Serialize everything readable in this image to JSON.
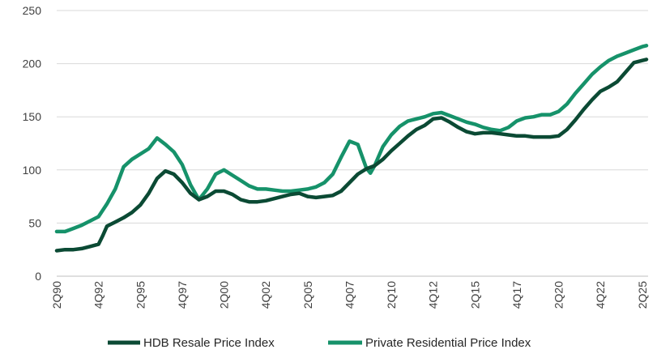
{
  "chart_data": {
    "type": "line",
    "title": "",
    "xlabel": "",
    "ylabel": "",
    "ylim": [
      0,
      250
    ],
    "yticks": [
      0,
      50,
      100,
      150,
      200,
      250
    ],
    "grid": "horizontal",
    "legend_position": "bottom",
    "x_tick_labels": [
      "2Q90",
      "4Q92",
      "2Q95",
      "4Q97",
      "2Q00",
      "4Q02",
      "2Q05",
      "4Q07",
      "2Q10",
      "4Q12",
      "2Q15",
      "4Q17",
      "2Q20",
      "4Q22",
      "2Q25"
    ],
    "colors": {
      "hdb": "#0b4a34",
      "private": "#16926a",
      "grid": "#d9d9d9",
      "axis": "#bfbfbf"
    },
    "series": [
      {
        "name": "HDB Resale Price Index",
        "key": "hdb",
        "points": [
          [
            "2Q90",
            24
          ],
          [
            "4Q90",
            25
          ],
          [
            "2Q91",
            25
          ],
          [
            "4Q91",
            26
          ],
          [
            "2Q92",
            28
          ],
          [
            "4Q92",
            30
          ],
          [
            "1Q93",
            38
          ],
          [
            "2Q93",
            47
          ],
          [
            "4Q93",
            51
          ],
          [
            "2Q94",
            55
          ],
          [
            "4Q94",
            60
          ],
          [
            "2Q95",
            67
          ],
          [
            "4Q95",
            78
          ],
          [
            "2Q96",
            92
          ],
          [
            "4Q96",
            99
          ],
          [
            "2Q97",
            96
          ],
          [
            "4Q97",
            88
          ],
          [
            "2Q98",
            78
          ],
          [
            "4Q98",
            72
          ],
          [
            "2Q99",
            75
          ],
          [
            "4Q99",
            80
          ],
          [
            "2Q00",
            80
          ],
          [
            "4Q00",
            77
          ],
          [
            "2Q01",
            72
          ],
          [
            "4Q01",
            70
          ],
          [
            "2Q02",
            70
          ],
          [
            "4Q02",
            71
          ],
          [
            "2Q03",
            73
          ],
          [
            "4Q03",
            75
          ],
          [
            "2Q04",
            77
          ],
          [
            "4Q04",
            78
          ],
          [
            "2Q05",
            75
          ],
          [
            "4Q05",
            74
          ],
          [
            "2Q06",
            75
          ],
          [
            "4Q06",
            76
          ],
          [
            "2Q07",
            80
          ],
          [
            "4Q07",
            88
          ],
          [
            "2Q08",
            96
          ],
          [
            "4Q08",
            101
          ],
          [
            "2Q09",
            104
          ],
          [
            "4Q09",
            110
          ],
          [
            "2Q10",
            118
          ],
          [
            "4Q10",
            125
          ],
          [
            "2Q11",
            132
          ],
          [
            "4Q11",
            138
          ],
          [
            "2Q12",
            142
          ],
          [
            "4Q12",
            148
          ],
          [
            "2Q13",
            149
          ],
          [
            "4Q13",
            145
          ],
          [
            "2Q14",
            140
          ],
          [
            "4Q14",
            136
          ],
          [
            "2Q15",
            134
          ],
          [
            "4Q15",
            135
          ],
          [
            "2Q16",
            135
          ],
          [
            "4Q16",
            134
          ],
          [
            "2Q17",
            133
          ],
          [
            "4Q17",
            132
          ],
          [
            "2Q18",
            132
          ],
          [
            "4Q18",
            131
          ],
          [
            "2Q19",
            131
          ],
          [
            "4Q19",
            131
          ],
          [
            "2Q20",
            132
          ],
          [
            "4Q20",
            138
          ],
          [
            "2Q21",
            147
          ],
          [
            "4Q21",
            157
          ],
          [
            "2Q22",
            166
          ],
          [
            "4Q22",
            174
          ],
          [
            "2Q23",
            178
          ],
          [
            "4Q23",
            183
          ],
          [
            "2Q24",
            192
          ],
          [
            "4Q24",
            201
          ],
          [
            "2Q25",
            203
          ],
          [
            "3Q25",
            204
          ]
        ]
      },
      {
        "name": "Private Residential Price Index",
        "key": "private",
        "points": [
          [
            "2Q90",
            42
          ],
          [
            "4Q90",
            42
          ],
          [
            "2Q91",
            45
          ],
          [
            "4Q91",
            48
          ],
          [
            "2Q92",
            52
          ],
          [
            "4Q92",
            56
          ],
          [
            "2Q93",
            68
          ],
          [
            "4Q93",
            82
          ],
          [
            "2Q94",
            103
          ],
          [
            "4Q94",
            110
          ],
          [
            "2Q95",
            115
          ],
          [
            "4Q95",
            120
          ],
          [
            "2Q96",
            130
          ],
          [
            "4Q96",
            124
          ],
          [
            "2Q97",
            117
          ],
          [
            "4Q97",
            105
          ],
          [
            "2Q98",
            86
          ],
          [
            "4Q98",
            72
          ],
          [
            "2Q99",
            82
          ],
          [
            "4Q99",
            96
          ],
          [
            "2Q00",
            100
          ],
          [
            "4Q00",
            95
          ],
          [
            "2Q01",
            90
          ],
          [
            "4Q01",
            85
          ],
          [
            "2Q02",
            82
          ],
          [
            "4Q02",
            82
          ],
          [
            "2Q03",
            81
          ],
          [
            "4Q03",
            80
          ],
          [
            "2Q04",
            80
          ],
          [
            "4Q04",
            81
          ],
          [
            "2Q05",
            82
          ],
          [
            "4Q05",
            84
          ],
          [
            "2Q06",
            88
          ],
          [
            "4Q06",
            96
          ],
          [
            "2Q07",
            112
          ],
          [
            "4Q07",
            127
          ],
          [
            "2Q08",
            124
          ],
          [
            "4Q08",
            102
          ],
          [
            "1Q09",
            97
          ],
          [
            "2Q09",
            104
          ],
          [
            "4Q09",
            122
          ],
          [
            "2Q10",
            133
          ],
          [
            "4Q10",
            141
          ],
          [
            "2Q11",
            146
          ],
          [
            "4Q11",
            148
          ],
          [
            "2Q12",
            150
          ],
          [
            "4Q12",
            153
          ],
          [
            "2Q13",
            154
          ],
          [
            "4Q13",
            151
          ],
          [
            "2Q14",
            148
          ],
          [
            "4Q14",
            145
          ],
          [
            "2Q15",
            143
          ],
          [
            "4Q15",
            140
          ],
          [
            "2Q16",
            138
          ],
          [
            "4Q16",
            137
          ],
          [
            "2Q17",
            140
          ],
          [
            "4Q17",
            146
          ],
          [
            "2Q18",
            149
          ],
          [
            "4Q18",
            150
          ],
          [
            "2Q19",
            152
          ],
          [
            "4Q19",
            152
          ],
          [
            "2Q20",
            155
          ],
          [
            "4Q20",
            162
          ],
          [
            "2Q21",
            172
          ],
          [
            "4Q21",
            181
          ],
          [
            "2Q22",
            190
          ],
          [
            "4Q22",
            197
          ],
          [
            "2Q23",
            203
          ],
          [
            "4Q23",
            207
          ],
          [
            "2Q24",
            210
          ],
          [
            "4Q24",
            213
          ],
          [
            "2Q25",
            216
          ],
          [
            "3Q25",
            217
          ]
        ]
      }
    ]
  }
}
